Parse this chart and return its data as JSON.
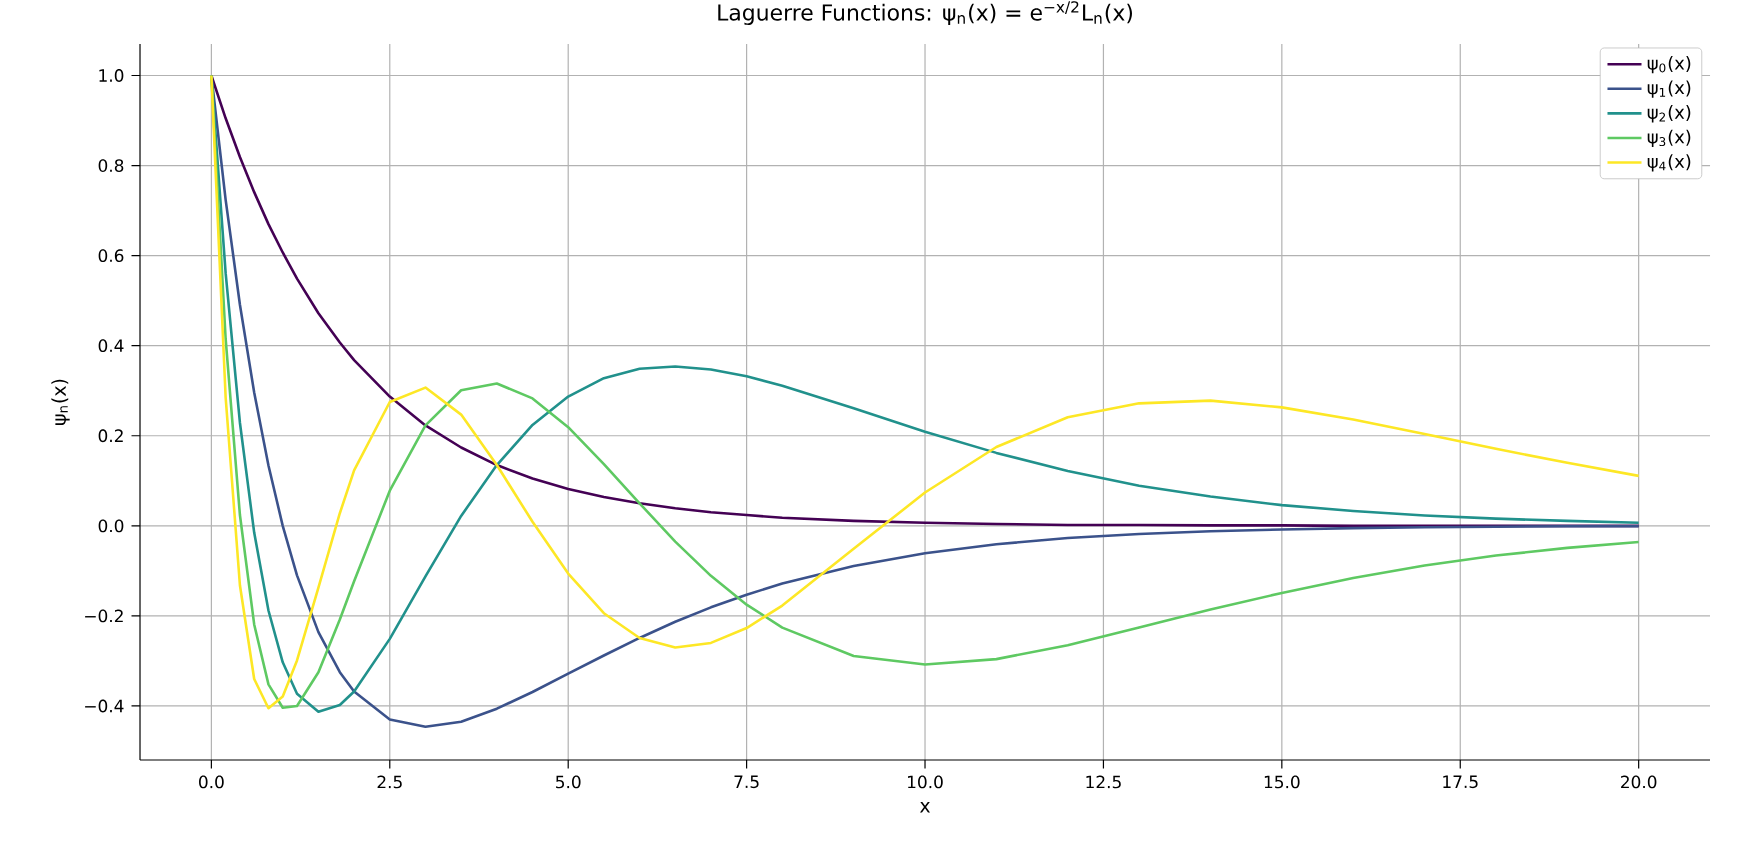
{
  "chart_data": {
    "type": "line",
    "title": "Laguerre Functions: ψ$_{n}$(x) = e$^{−x/2}$L$_{n}$(x)",
    "xlabel": "x",
    "ylabel": "ψ$_{n}$(x)",
    "x": [
      0,
      0.2,
      0.4,
      0.6,
      0.8,
      1.0,
      1.2,
      1.5,
      1.8,
      2,
      2.5,
      3,
      3.5,
      4,
      4.5,
      5,
      5.5,
      6,
      6.5,
      7,
      7.5,
      8,
      9,
      10,
      11,
      12,
      13,
      14,
      15,
      16,
      17,
      18,
      19,
      20
    ],
    "series": [
      {
        "name": "ψ$_{0}$(x)",
        "color": "#440154",
        "values": [
          1,
          0.905,
          0.819,
          0.741,
          0.67,
          0.607,
          0.549,
          0.472,
          0.407,
          0.368,
          0.287,
          0.223,
          0.174,
          0.135,
          0.105,
          0.082,
          0.064,
          0.05,
          0.039,
          0.03,
          0.024,
          0.018,
          0.011,
          0.007,
          0.004,
          0.002,
          0.002,
          0.001,
          0.001,
          0,
          0,
          0,
          0,
          0
        ]
      },
      {
        "name": "ψ$_{1}$(x)",
        "color": "#3b528b",
        "values": [
          1,
          0.724,
          0.491,
          0.296,
          0.134,
          0,
          -0.11,
          -0.236,
          -0.325,
          -0.368,
          -0.43,
          -0.446,
          -0.435,
          -0.406,
          -0.369,
          -0.328,
          -0.288,
          -0.249,
          -0.213,
          -0.181,
          -0.153,
          -0.128,
          -0.089,
          -0.061,
          -0.041,
          -0.027,
          -0.018,
          -0.012,
          -0.008,
          -0.005,
          -0.003,
          -0.002,
          -0.001,
          -0.001
        ]
      },
      {
        "name": "ψ$_{2}$(x)",
        "color": "#21918c",
        "values": [
          1,
          0.561,
          0.229,
          -0.015,
          -0.188,
          -0.303,
          -0.373,
          -0.413,
          -0.398,
          -0.368,
          -0.251,
          -0.112,
          0.022,
          0.135,
          0.224,
          0.287,
          0.328,
          0.349,
          0.354,
          0.347,
          0.332,
          0.311,
          0.261,
          0.209,
          0.162,
          0.122,
          0.089,
          0.065,
          0.046,
          0.033,
          0.023,
          0.016,
          0.011,
          0.007
        ]
      },
      {
        "name": "ψ$_{3}$(x)",
        "color": "#5ec962",
        "values": [
          1,
          0.415,
          0.024,
          -0.219,
          -0.352,
          -0.404,
          -0.4,
          -0.325,
          -0.208,
          -0.123,
          0.078,
          0.223,
          0.301,
          0.316,
          0.283,
          0.219,
          0.137,
          0.05,
          -0.035,
          -0.111,
          -0.175,
          -0.226,
          -0.289,
          -0.308,
          -0.296,
          -0.265,
          -0.226,
          -0.186,
          -0.149,
          -0.116,
          -0.088,
          -0.066,
          -0.049,
          -0.036
        ]
      },
      {
        "name": "ψ$_{4}$(x)",
        "color": "#fde725",
        "values": [
          1,
          0.285,
          -0.132,
          -0.34,
          -0.405,
          -0.379,
          -0.299,
          -0.137,
          0.028,
          0.123,
          0.275,
          0.307,
          0.247,
          0.135,
          0.009,
          -0.106,
          -0.194,
          -0.249,
          -0.27,
          -0.26,
          -0.227,
          -0.177,
          -0.051,
          0.074,
          0.175,
          0.241,
          0.272,
          0.278,
          0.263,
          0.236,
          0.204,
          0.171,
          0.14,
          0.111
        ]
      }
    ],
    "xlim": [
      -1,
      21
    ],
    "ylim": [
      -0.52,
      1.07
    ],
    "xticks": [
      {
        "value": 0,
        "label": "0.0"
      },
      {
        "value": 2.5,
        "label": "2.5"
      },
      {
        "value": 5,
        "label": "5.0"
      },
      {
        "value": 7.5,
        "label": "7.5"
      },
      {
        "value": 10,
        "label": "10.0"
      },
      {
        "value": 12.5,
        "label": "12.5"
      },
      {
        "value": 15,
        "label": "15.0"
      },
      {
        "value": 17.5,
        "label": "17.5"
      },
      {
        "value": 20,
        "label": "20.0"
      }
    ],
    "yticks": [
      {
        "value": -0.4,
        "label": "−0.4"
      },
      {
        "value": -0.2,
        "label": "−0.2"
      },
      {
        "value": 0,
        "label": "0.0"
      },
      {
        "value": 0.2,
        "label": "0.2"
      },
      {
        "value": 0.4,
        "label": "0.4"
      },
      {
        "value": 0.6,
        "label": "0.6"
      },
      {
        "value": 0.8,
        "label": "0.8"
      },
      {
        "value": 1.0,
        "label": "1.0"
      }
    ],
    "grid": true,
    "legend": "top right",
    "marker": "none",
    "line_style": "solid"
  }
}
